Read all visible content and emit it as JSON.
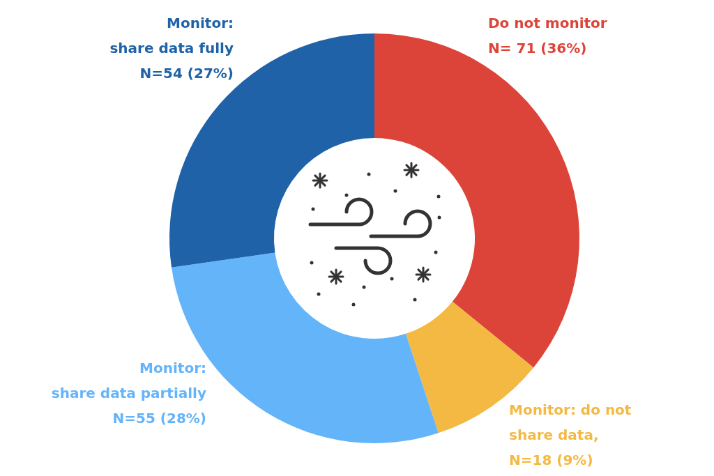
{
  "chart_data": {
    "type": "doughnut",
    "categories": [
      [
        "Do not monitor"
      ],
      [
        "Monitor: do not",
        "share data,"
      ],
      [
        "Monitor:",
        "share data partially"
      ],
      [
        "Monitor:",
        "share data fully"
      ]
    ],
    "values": [
      71,
      18,
      55,
      54
    ],
    "value_labels": [
      "N= 71 (36%)",
      "N=18 (9%)",
      "N=55 (28%)",
      "N=54 (27%)"
    ],
    "colors": [
      "#dd4439",
      "#f4b943",
      "#64b4fa",
      "#1f62a8"
    ],
    "legend": false
  }
}
